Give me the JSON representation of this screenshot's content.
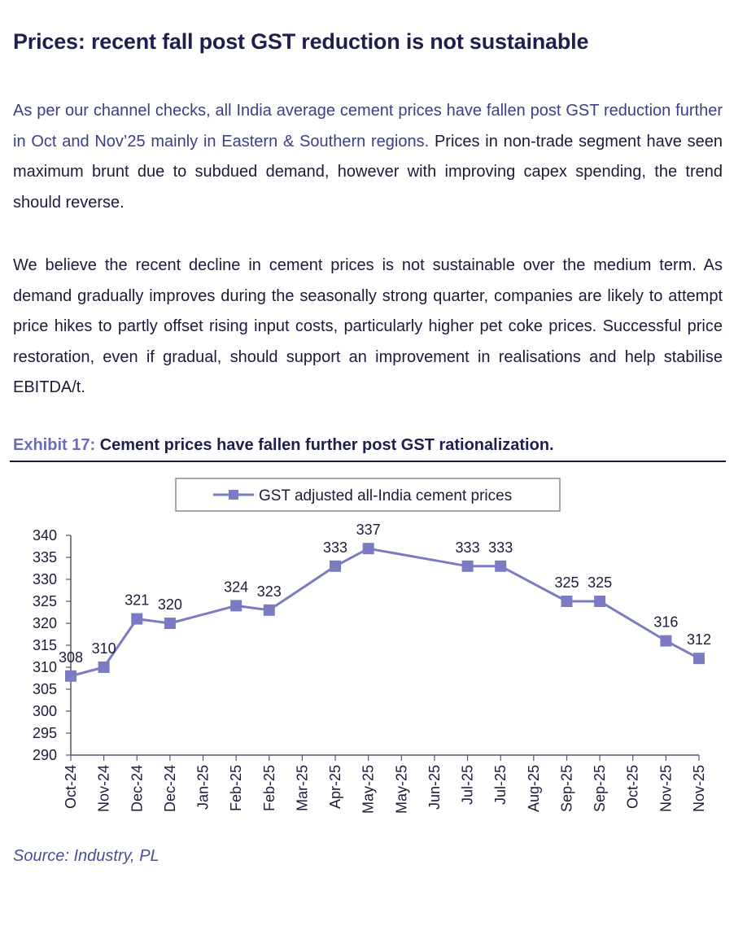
{
  "heading": "Prices: recent fall post GST reduction is not sustainable",
  "paragraph1": {
    "part1": "As per our channel checks, all India average cement prices have fallen post GST reduction further in Oct and Nov’25 mainly in Eastern & Southern regions.",
    "part2": " Prices in non-trade segment have seen maximum brunt due to subdued demand, however with improving capex spending, the trend should reverse."
  },
  "paragraph2": "We believe the recent decline in cement prices is not sustainable over the medium term. As demand gradually improves during the seasonally strong quarter, companies are likely to attempt price hikes to partly offset rising input costs, particularly higher pet coke prices. Successful price restoration, even if gradual, should support an improvement in realisations and help stabilise EBITDA/t.",
  "exhibit": {
    "number": "Exhibit 17:",
    "caption": "Cement prices have fallen further post GST rationalization."
  },
  "source": "Source: Industry, PL",
  "chart_data": {
    "type": "line",
    "legend_position": "top-center",
    "line_color": "#7b7bc4",
    "ylim": [
      290,
      340
    ],
    "yticks": [
      290,
      295,
      300,
      305,
      310,
      315,
      320,
      325,
      330,
      335,
      340
    ],
    "grid": false,
    "categories": [
      "Oct-24",
      "Nov-24",
      "Dec-24",
      "Dec-24",
      "Jan-25",
      "Feb-25",
      "Feb-25",
      "Mar-25",
      "Apr-25",
      "May-25",
      "May-25",
      "Jun-25",
      "Jul-25",
      "Jul-25",
      "Aug-25",
      "Sep-25",
      "Sep-25",
      "Oct-25",
      "Nov-25",
      "Nov-25"
    ],
    "series": [
      {
        "name": "GST adjusted all-India cement prices",
        "points": [
          {
            "x": "Oct-24",
            "y": 308,
            "label": "308"
          },
          {
            "x": "Nov-24",
            "y": 310,
            "label": "310"
          },
          {
            "x": "Dec-24",
            "y": 321,
            "label": "321"
          },
          {
            "x": "Dec-24",
            "y": 320,
            "label": "320"
          },
          {
            "x": "Feb-25",
            "y": 324,
            "label": "324"
          },
          {
            "x": "Feb-25",
            "y": 323,
            "label": "323"
          },
          {
            "x": "Apr-25",
            "y": 333,
            "label": "333"
          },
          {
            "x": "May-25",
            "y": 337,
            "label": "337"
          },
          {
            "x": "Jul-25",
            "y": 333,
            "label": "333"
          },
          {
            "x": "Jul-25",
            "y": 333,
            "label": "333"
          },
          {
            "x": "Sep-25",
            "y": 325,
            "label": "325"
          },
          {
            "x": "Sep-25",
            "y": 325,
            "label": "325"
          },
          {
            "x": "Nov-25",
            "y": 316,
            "label": "316"
          },
          {
            "x": "Nov-25",
            "y": 312,
            "label": "312"
          }
        ]
      }
    ]
  }
}
